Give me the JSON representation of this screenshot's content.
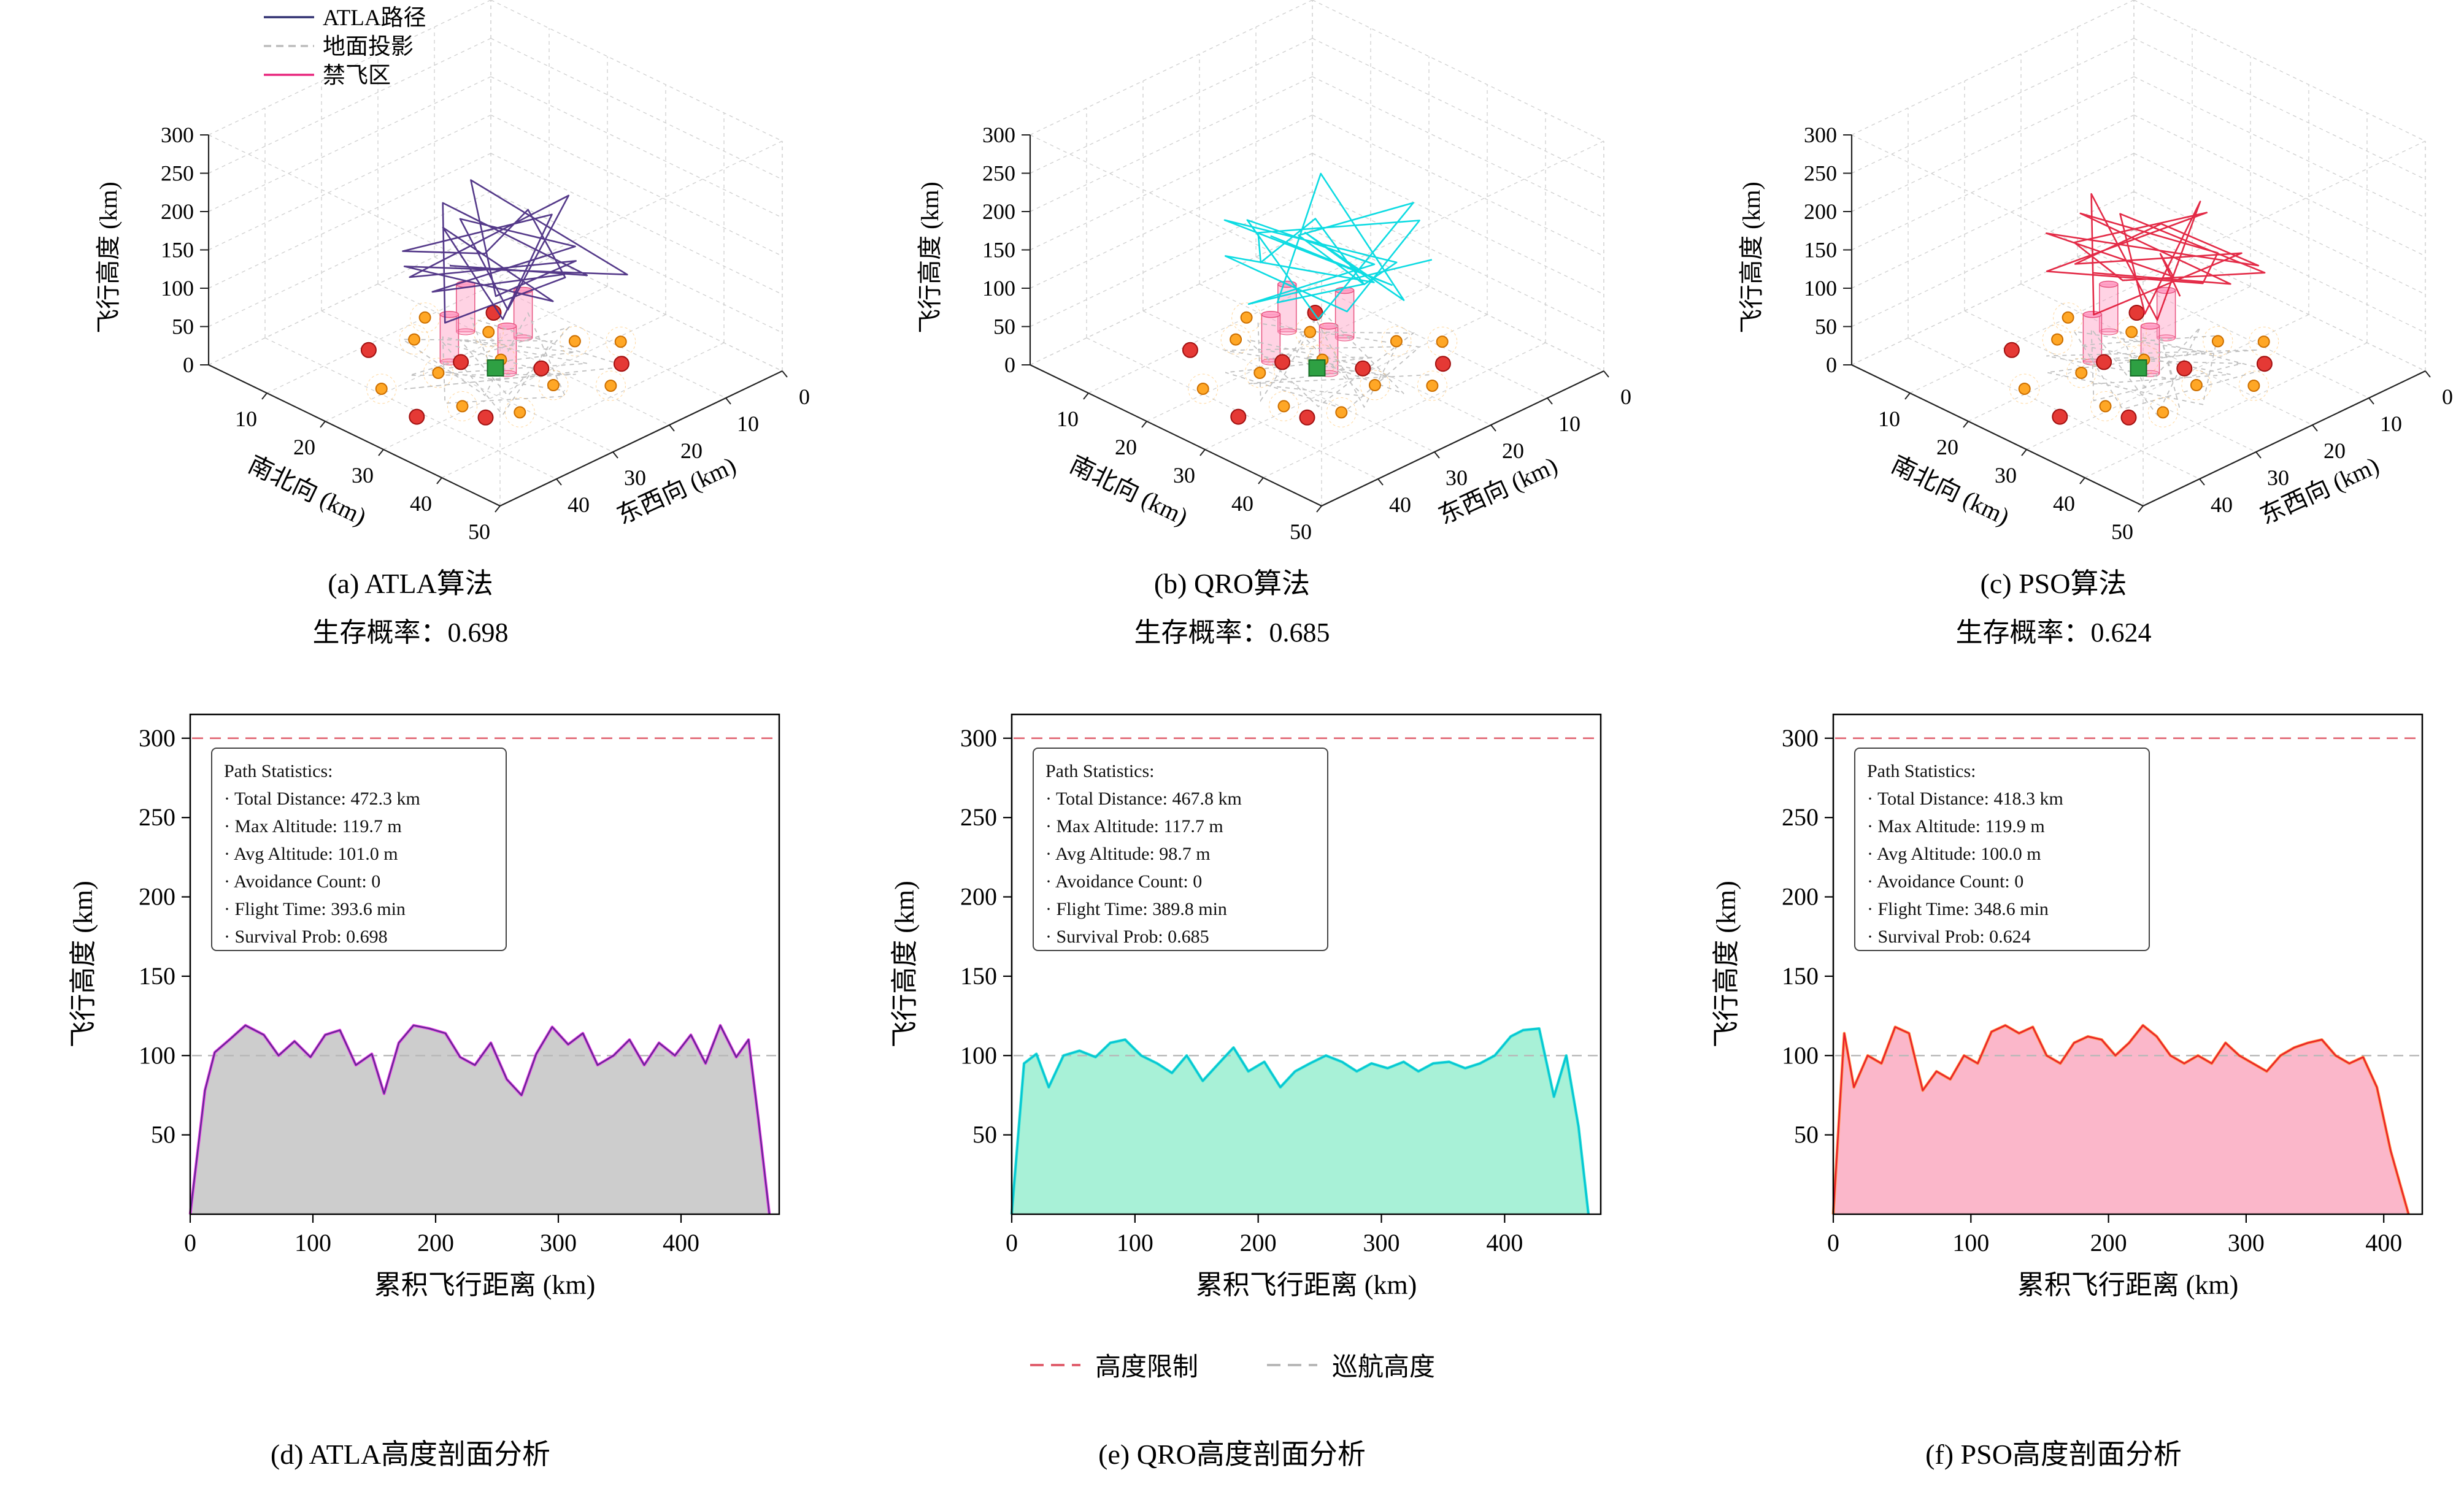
{
  "scene3d": {
    "start": [
      25,
      25
    ],
    "start_color": "#2EA043",
    "start_edge": "#166B26",
    "targets": [
      [
        15,
        15
      ],
      [
        29,
        21
      ],
      [
        21,
        27
      ],
      [
        33,
        35
      ],
      [
        11,
        33
      ],
      [
        27,
        41
      ],
      [
        35,
        13
      ]
    ],
    "target_color": "#E53935",
    "target_edge": "#A01010",
    "threats": [
      [
        18,
        19
      ],
      [
        27,
        13
      ],
      [
        33,
        23
      ],
      [
        21,
        31
      ],
      [
        29,
        35
      ],
      [
        13,
        27
      ],
      [
        35,
        31
      ],
      [
        19,
        39
      ],
      [
        31,
        9
      ],
      [
        24,
        23
      ],
      [
        38,
        18
      ],
      [
        10,
        22
      ]
    ],
    "threat_color": "#FFA726",
    "threat_edge": "#CC6F00",
    "nofly": [
      [
        16,
        21
      ],
      [
        22,
        17
      ],
      [
        27,
        25
      ],
      [
        20,
        28
      ]
    ],
    "nofly_fill": "#FF9EC4",
    "nofly_edge": "#E75480",
    "nofly_height": 62
  },
  "profile_legend": [
    {
      "label": "高度限制",
      "color": "#E0606E"
    },
    {
      "label": "巡航高度",
      "color": "#B8B8B8"
    }
  ],
  "chart_data": [
    {
      "id": "atla-3d",
      "type": "path3d",
      "caption": "(a) ATLA算法",
      "survival_label": "生存概率：0.698",
      "zlabel": "飞行高度 (km)",
      "ylabel": "南北向 (km)",
      "xlabel": "东西向 (km)",
      "z_ticks": [
        0,
        50,
        100,
        150,
        200,
        250,
        300
      ],
      "y_ticks": [
        10,
        20,
        30,
        40,
        50
      ],
      "x_ticks": [
        40,
        30,
        20,
        10,
        0
      ],
      "z_range": [
        0,
        300
      ],
      "y_range": [
        0,
        50
      ],
      "x_range": [
        0,
        50
      ],
      "path_color": "#4B2E83",
      "show_legend": true,
      "legend": [
        {
          "label": "ATLA路径",
          "color": "#2F2F70",
          "dash": false
        },
        {
          "label": "地面投影",
          "color": "#BDBDBD",
          "dash": true
        },
        {
          "label": "禁飞区",
          "color": "#E8247C",
          "dash": false
        }
      ],
      "path3d": [
        [
          22,
          30,
          140
        ],
        [
          32,
          16,
          115
        ],
        [
          15,
          24,
          175
        ],
        [
          27,
          36,
          105
        ],
        [
          36,
          24,
          155
        ],
        [
          18,
          12,
          135
        ],
        [
          29,
          31,
          185
        ],
        [
          12,
          28,
          115
        ],
        [
          25,
          15,
          165
        ],
        [
          34,
          33,
          125
        ],
        [
          16,
          25,
          150
        ],
        [
          31,
          21,
          95
        ],
        [
          21,
          37,
          160
        ],
        [
          36,
          13,
          120
        ],
        [
          14,
          18,
          180
        ],
        [
          27,
          27,
          108
        ],
        [
          33,
          19,
          148
        ],
        [
          19,
          34,
          128
        ],
        [
          24,
          11,
          172
        ],
        [
          31,
          29,
          112
        ],
        [
          17,
          23,
          158
        ],
        [
          29,
          15,
          138
        ],
        [
          20,
          31,
          102
        ],
        [
          35,
          23,
          152
        ]
      ]
    },
    {
      "id": "qro-3d",
      "type": "path3d",
      "caption": "(b) QRO算法",
      "survival_label": "生存概率：0.685",
      "zlabel": "飞行高度 (km)",
      "ylabel": "南北向 (km)",
      "xlabel": "东西向 (km)",
      "z_ticks": [
        0,
        50,
        100,
        150,
        200,
        250,
        300
      ],
      "y_ticks": [
        10,
        20,
        30,
        40,
        50
      ],
      "x_ticks": [
        40,
        30,
        20,
        10,
        0
      ],
      "z_range": [
        0,
        300
      ],
      "y_range": [
        0,
        50
      ],
      "x_range": [
        0,
        50
      ],
      "path_color": "#00D9E0",
      "show_legend": false,
      "legend": [],
      "path3d": [
        [
          18,
          26,
          150
        ],
        [
          33,
          20,
          120
        ],
        [
          14,
          30,
          170
        ],
        [
          28,
          14,
          110
        ],
        [
          36,
          28,
          160
        ],
        [
          16,
          16,
          130
        ],
        [
          26,
          36,
          180
        ],
        [
          12,
          22,
          118
        ],
        [
          30,
          12,
          165
        ],
        [
          35,
          30,
          128
        ],
        [
          18,
          34,
          152
        ],
        [
          28,
          18,
          98
        ],
        [
          22,
          24,
          162
        ],
        [
          37,
          22,
          122
        ],
        [
          15,
          14,
          178
        ],
        [
          25,
          32,
          110
        ],
        [
          34,
          26,
          146
        ],
        [
          17,
          20,
          126
        ],
        [
          27,
          10,
          170
        ],
        [
          32,
          32,
          114
        ],
        [
          14,
          26,
          156
        ],
        [
          30,
          20,
          136
        ],
        [
          22,
          34,
          104
        ],
        [
          36,
          16,
          150
        ]
      ]
    },
    {
      "id": "pso-3d",
      "type": "path3d",
      "caption": "(c) PSO算法",
      "survival_label": "生存概率：0.624",
      "zlabel": "飞行高度 (km)",
      "ylabel": "南北向 (km)",
      "xlabel": "东西向 (km)",
      "z_ticks": [
        0,
        50,
        100,
        150,
        200,
        250,
        300
      ],
      "y_ticks": [
        10,
        20,
        30,
        40,
        50
      ],
      "x_ticks": [
        40,
        30,
        20,
        10,
        0
      ],
      "z_range": [
        0,
        300
      ],
      "y_range": [
        0,
        50
      ],
      "x_range": [
        0,
        50
      ],
      "path_color": "#E11F3C",
      "show_legend": false,
      "legend": [],
      "path3d": [
        [
          24,
          32,
          145
        ],
        [
          34,
          18,
          118
        ],
        [
          16,
          26,
          172
        ],
        [
          26,
          12,
          108
        ],
        [
          37,
          26,
          158
        ],
        [
          18,
          34,
          132
        ],
        [
          28,
          16,
          182
        ],
        [
          13,
          24,
          116
        ],
        [
          31,
          34,
          168
        ],
        [
          36,
          14,
          126
        ],
        [
          17,
          20,
          154
        ],
        [
          29,
          28,
          96
        ],
        [
          23,
          12,
          164
        ],
        [
          35,
          32,
          124
        ],
        [
          14,
          22,
          176
        ],
        [
          27,
          35,
          112
        ],
        [
          33,
          15,
          144
        ],
        [
          18,
          29,
          124
        ],
        [
          25,
          21,
          174
        ],
        [
          32,
          11,
          110
        ],
        [
          15,
          31,
          160
        ],
        [
          30,
          24,
          134
        ],
        [
          21,
          17,
          106
        ],
        [
          36,
          29,
          148
        ]
      ]
    },
    {
      "id": "atla-profile",
      "type": "area",
      "caption": "(d) ATLA高度剖面分析",
      "xlabel": "累积飞行距离 (km)",
      "ylabel": "飞行高度 (km)",
      "x_ticks": [
        0,
        100,
        200,
        300,
        400
      ],
      "y_ticks": [
        50,
        100,
        150,
        200,
        250,
        300
      ],
      "xlim": [
        0,
        480
      ],
      "ylim": [
        0,
        315
      ],
      "altitude_limit": 300,
      "cruise_altitude": 100,
      "fill_color": "#C8C8C8",
      "edge_color": "#E93BE9",
      "line_color": "#5B2C8D",
      "stats": [
        "Path Statistics:",
        "· Total Distance: 472.3 km",
        "· Max Altitude: 119.7 m",
        "· Avg Altitude: 101.0 m",
        "· Avoidance Count: 0",
        "· Flight Time: 393.6 min",
        "· Survival Prob: 0.698"
      ],
      "x": [
        0,
        12,
        20,
        32,
        45,
        60,
        72,
        85,
        98,
        110,
        122,
        135,
        148,
        158,
        170,
        182,
        195,
        208,
        220,
        232,
        245,
        258,
        270,
        282,
        295,
        308,
        320,
        332,
        345,
        358,
        370,
        382,
        395,
        408,
        420,
        432,
        445,
        455,
        463,
        472
      ],
      "y": [
        0,
        78,
        102,
        110,
        119,
        113,
        100,
        109,
        99,
        113,
        116,
        94,
        101,
        76,
        108,
        119,
        117,
        114,
        99,
        94,
        108,
        85,
        75,
        101,
        118,
        107,
        114,
        94,
        100,
        110,
        94,
        108,
        100,
        113,
        95,
        119,
        99,
        110,
        60,
        0
      ]
    },
    {
      "id": "qro-profile",
      "type": "area",
      "caption": "(e) QRO高度剖面分析",
      "xlabel": "累积飞行距离 (km)",
      "ylabel": "飞行高度 (km)",
      "x_ticks": [
        0,
        100,
        200,
        300,
        400
      ],
      "y_ticks": [
        50,
        100,
        150,
        200,
        250,
        300
      ],
      "xlim": [
        0,
        478
      ],
      "ylim": [
        0,
        315
      ],
      "altitude_limit": 300,
      "cruise_altitude": 100,
      "fill_color": "#9FEFD3",
      "edge_color": "#35E0D5",
      "line_color": "#00C2D4",
      "stats": [
        "Path Statistics:",
        "· Total Distance: 467.8 km",
        "· Max Altitude: 117.7 m",
        "· Avg Altitude: 98.7 m",
        "· Avoidance Count: 0",
        "· Flight Time: 389.8 min",
        "· Survival Prob: 0.685"
      ],
      "x": [
        0,
        10,
        20,
        30,
        42,
        55,
        68,
        80,
        92,
        105,
        118,
        130,
        142,
        155,
        168,
        180,
        192,
        205,
        218,
        230,
        242,
        255,
        268,
        280,
        292,
        305,
        318,
        330,
        342,
        355,
        368,
        380,
        392,
        405,
        415,
        428,
        440,
        450,
        460,
        468
      ],
      "y": [
        0,
        95,
        101,
        80,
        100,
        103,
        99,
        108,
        110,
        100,
        95,
        89,
        100,
        84,
        95,
        105,
        90,
        96,
        80,
        90,
        95,
        100,
        96,
        90,
        95,
        92,
        96,
        90,
        95,
        96,
        92,
        95,
        100,
        112,
        116,
        117,
        74,
        100,
        55,
        0
      ]
    },
    {
      "id": "pso-profile",
      "type": "area",
      "caption": "(f) PSO高度剖面分析",
      "xlabel": "累积飞行距离 (km)",
      "ylabel": "飞行高度 (km)",
      "x_ticks": [
        0,
        100,
        200,
        300,
        400
      ],
      "y_ticks": [
        50,
        100,
        150,
        200,
        250,
        300
      ],
      "xlim": [
        0,
        428
      ],
      "ylim": [
        0,
        315
      ],
      "altitude_limit": 300,
      "cruise_altitude": 100,
      "fill_color": "#FBAFC4",
      "edge_color": "#FF8C42",
      "line_color": "#E8192C",
      "stats": [
        "Path Statistics:",
        "· Total Distance: 418.3 km",
        "· Max Altitude: 119.9 m",
        "· Avg Altitude: 100.0 m",
        "· Avoidance Count: 0",
        "· Flight Time: 348.6 min",
        "· Survival Prob: 0.624"
      ],
      "x": [
        0,
        8,
        15,
        25,
        35,
        45,
        55,
        65,
        75,
        85,
        95,
        105,
        115,
        125,
        135,
        145,
        155,
        165,
        175,
        185,
        195,
        205,
        215,
        225,
        235,
        245,
        255,
        265,
        275,
        285,
        295,
        305,
        315,
        325,
        335,
        345,
        355,
        365,
        375,
        385,
        395,
        405,
        418
      ],
      "y": [
        0,
        114,
        80,
        100,
        95,
        118,
        114,
        78,
        90,
        85,
        100,
        95,
        115,
        119,
        114,
        118,
        100,
        95,
        108,
        112,
        110,
        100,
        108,
        119,
        112,
        100,
        95,
        100,
        95,
        108,
        100,
        95,
        90,
        100,
        105,
        108,
        110,
        100,
        95,
        99,
        80,
        40,
        0
      ]
    }
  ]
}
